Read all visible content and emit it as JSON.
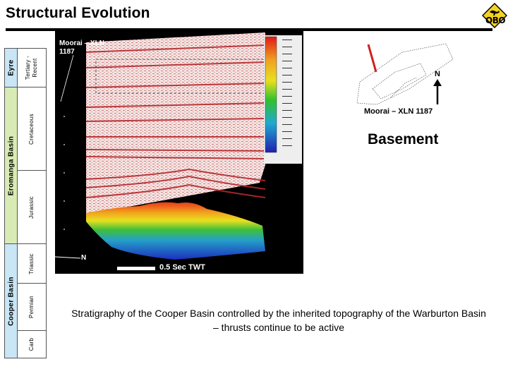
{
  "slide": {
    "title": "Structural Evolution",
    "logo": {
      "text": "OBO",
      "icon": "kangaroo-road-sign-icon"
    }
  },
  "stratigraphy": {
    "basins": [
      {
        "name": "Eyre",
        "color": "#c8e6f5"
      },
      {
        "name": "Eromanga Basin",
        "color": "#d9ebb4"
      },
      {
        "name": "Cooper Basin",
        "color": "#c8e6f5"
      }
    ],
    "ages": [
      "Tertiary - Recent",
      "Cretaceous",
      "Jurassic",
      "Triassic",
      "Permian",
      "Carb"
    ]
  },
  "seismic": {
    "line_label": "Moorai – XLN 1187",
    "line_label_1": "Moorai – XLN",
    "line_label_2": "1187",
    "north_label": "N",
    "scale_label": "0.5 Sec TWT",
    "colors": {
      "background": "#000000",
      "reflector": "#b4282d",
      "surface_high": "#e83a1c",
      "surface_low": "#1c3fbf"
    }
  },
  "location_map": {
    "north_label": "N",
    "caption": "Moorai – XLN 1187",
    "line_color": "#d21e1e"
  },
  "heading": "Basement",
  "caption": "Stratigraphy of the Cooper Basin controlled by the inherited topography of the Warburton Basin – thrusts continue to be active"
}
